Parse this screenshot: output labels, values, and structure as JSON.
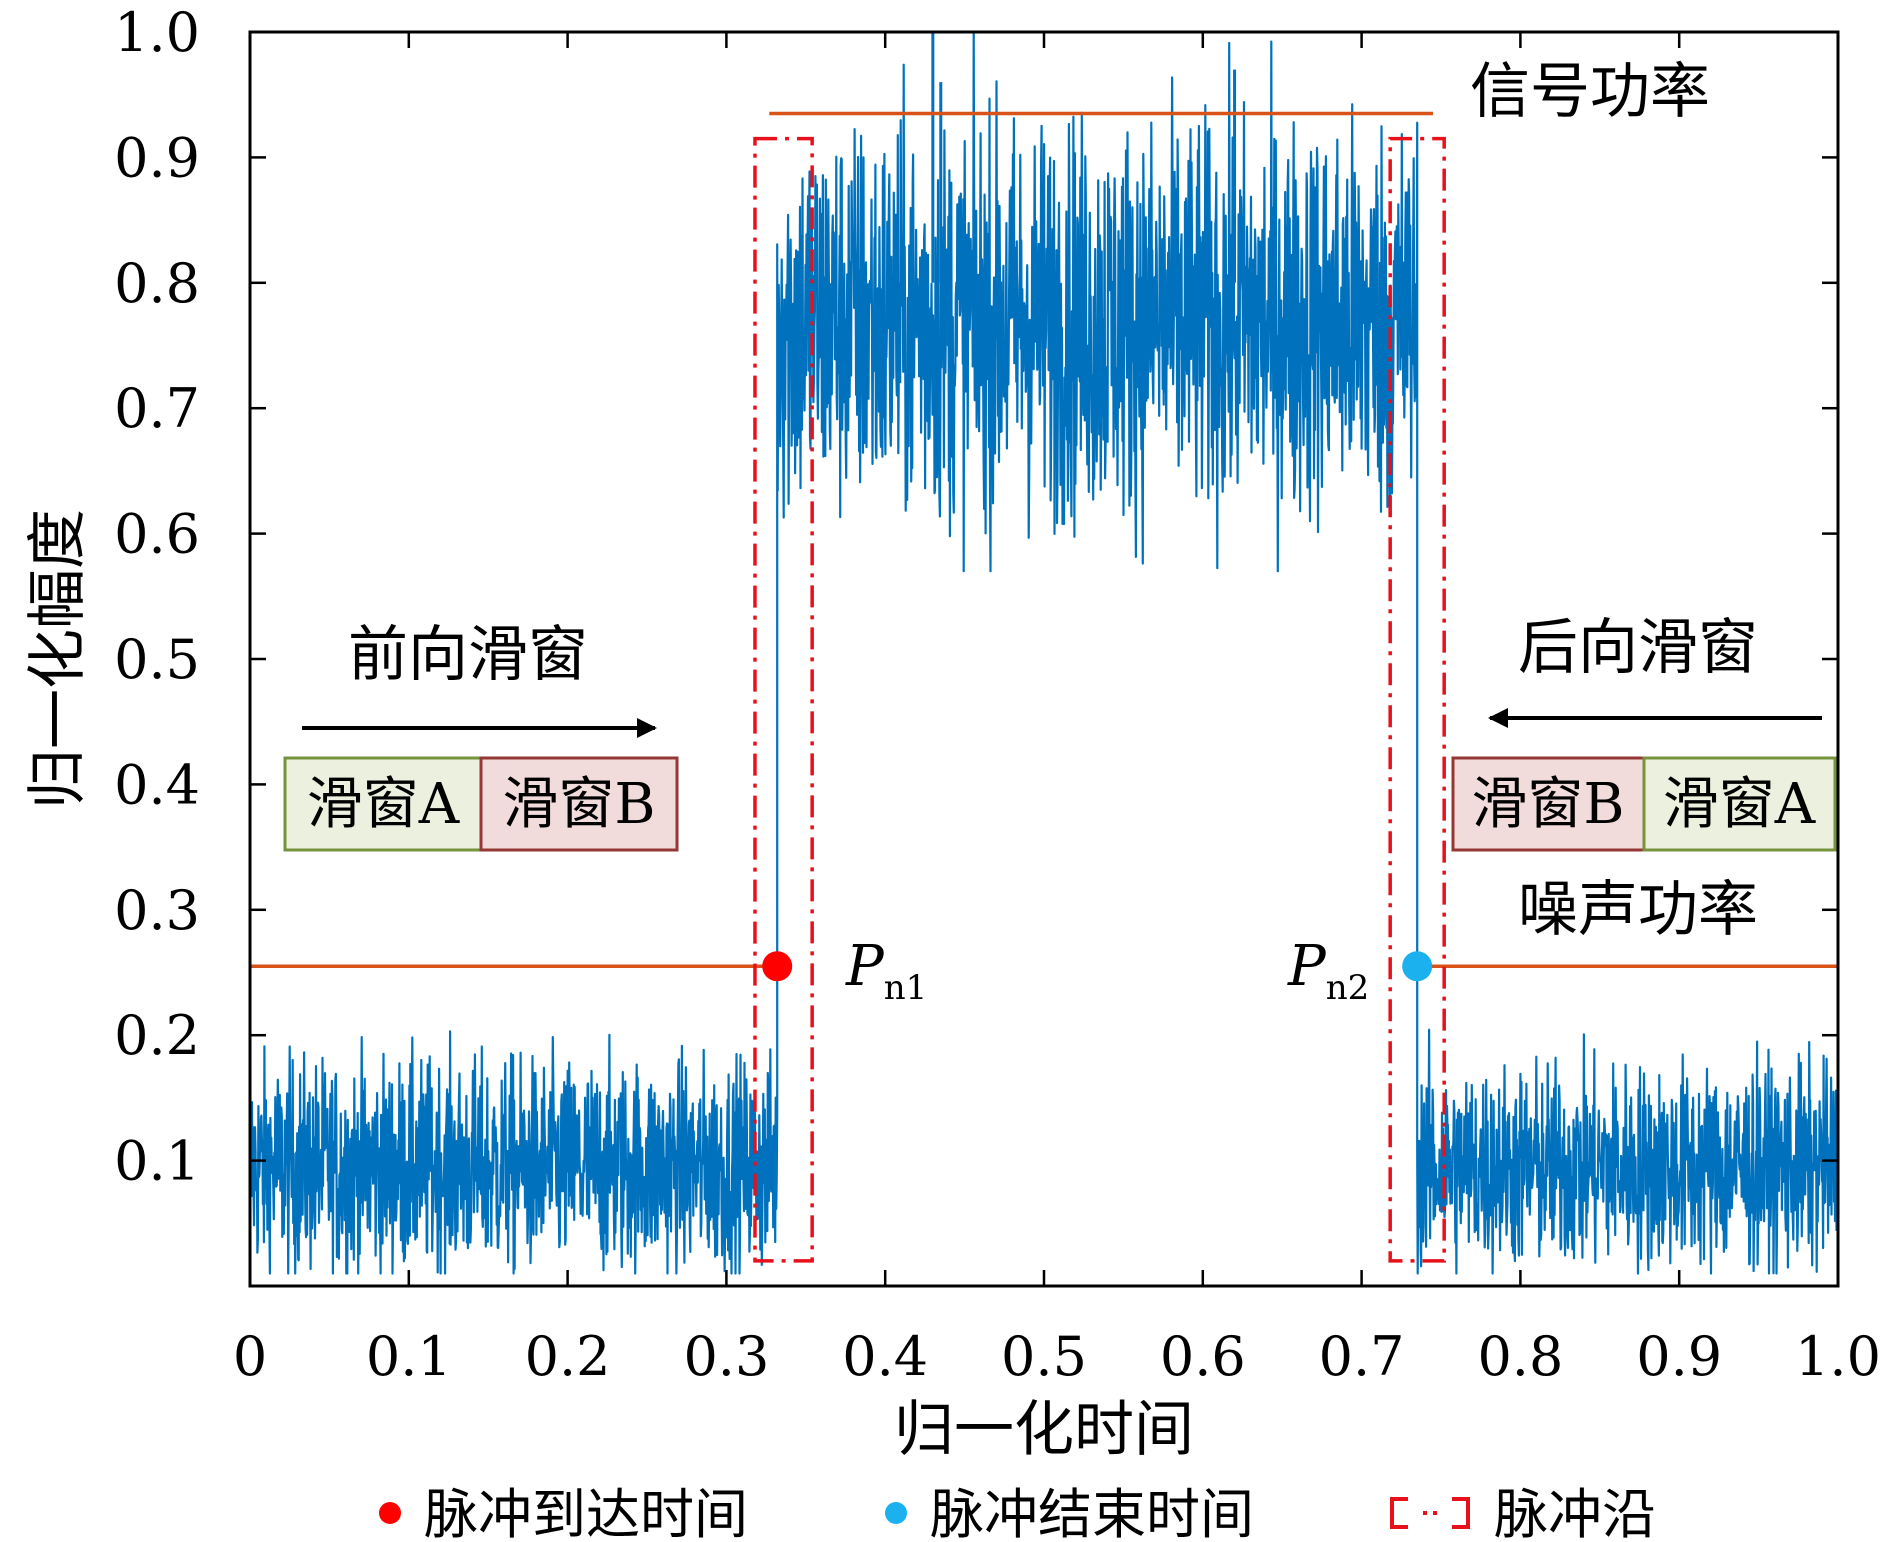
{
  "chart_data": {
    "type": "line",
    "xlabel": "归一化时间",
    "ylabel": "归一化幅度",
    "xlim": [
      0,
      1.0
    ],
    "ylim": [
      0,
      1.0
    ],
    "x_ticks": [
      "0",
      "0.1",
      "0.2",
      "0.3",
      "0.4",
      "0.5",
      "0.6",
      "0.7",
      "0.8",
      "0.9",
      "1.0"
    ],
    "y_ticks": [
      "0.1",
      "0.2",
      "0.3",
      "0.4",
      "0.5",
      "0.6",
      "0.7",
      "0.8",
      "0.9",
      "1.0"
    ],
    "series": [
      {
        "color": "#0072BD",
        "segments": [
          {
            "x_start": 0.0,
            "x_end": 0.332,
            "mean": 0.095,
            "min": 0.01,
            "max": 0.24
          },
          {
            "x_start": 0.332,
            "x_end": 0.735,
            "mean": 0.77,
            "min": 0.57,
            "max": 1.0
          },
          {
            "x_start": 0.735,
            "x_end": 1.0,
            "mean": 0.095,
            "min": 0.01,
            "max": 0.23
          }
        ]
      }
    ],
    "reference_lines": [
      {
        "label": "信号功率",
        "y": 0.935,
        "x_start": 0.327,
        "x_end": 0.745,
        "color": "#D95319"
      },
      {
        "label": "噪声功率",
        "y": 0.255,
        "x_start": 0.0,
        "x_end": 0.332,
        "color": "#D95319"
      },
      {
        "label": "噪声功率",
        "y": 0.255,
        "x_start": 0.735,
        "x_end": 1.0,
        "color": "#D95319"
      }
    ],
    "points": [
      {
        "label": "Pn1",
        "x": 0.332,
        "y": 0.255,
        "color": "#FF0000"
      },
      {
        "label": "Pn2",
        "x": 0.735,
        "y": 0.255,
        "color": "#1BB0EE"
      }
    ],
    "edge_boxes": [
      {
        "x_start": 0.318,
        "x_end": 0.354,
        "y_bottom": 0.02,
        "y_top": 0.915,
        "color": "#E8101A"
      },
      {
        "x_start": 0.718,
        "x_end": 0.752,
        "y_bottom": 0.02,
        "y_top": 0.915,
        "color": "#E8101A"
      }
    ],
    "annotations": {
      "signal_power": "信号功率",
      "noise_power": "噪声功率",
      "forward_window": "前向滑窗",
      "backward_window": "后向滑窗",
      "window_a": "滑窗A",
      "window_b": "滑窗B",
      "pn1_main": "P",
      "pn1_sub": "n1",
      "pn2_main": "P",
      "pn2_sub": "n2"
    },
    "legend": {
      "placement": "bottom",
      "items": [
        {
          "label": "脉冲到达时间",
          "color": "#FF0000",
          "marker": "dot"
        },
        {
          "label": "脉冲结束时间",
          "color": "#1BB0EE",
          "marker": "dot"
        },
        {
          "label": "脉冲沿",
          "color": "#E8101A",
          "marker": "dashdot-box"
        }
      ]
    },
    "colors": {
      "line": "#0072BD",
      "power": "#D95319",
      "window_a_fill": "#EBF1DE",
      "window_a_stroke": "#77933C",
      "window_b_fill": "#F2DCDB",
      "window_b_stroke": "#953735"
    }
  }
}
